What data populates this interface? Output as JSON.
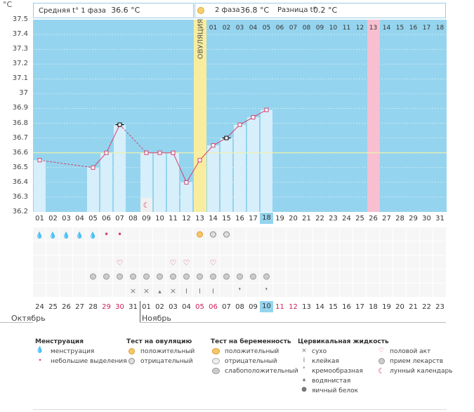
{
  "unit_label": "°C",
  "header": {
    "phase1_label": "Средняя t° 1 фаза",
    "phase1_value": "36.6 °C",
    "phase2_label": "2 фаза",
    "phase2_value": "36.8 °C",
    "diff_label": "Разница t°",
    "diff_value": "0.2 °C"
  },
  "ovulation_label": "ОВУЛЯЦИЯ",
  "cycle_day_labels": [
    "01",
    "02",
    "03",
    "04",
    "05",
    "06",
    "07",
    "08",
    "09",
    "10",
    "11",
    "12",
    "13",
    "14",
    "15",
    "16",
    "17",
    "18",
    "19",
    "20",
    "21",
    "22",
    "23",
    "24",
    "25",
    "26",
    "27",
    "28",
    "29",
    "30",
    "31"
  ],
  "top_day_labels": [
    "01",
    "02",
    "03",
    "04",
    "05",
    "06",
    "07",
    "08",
    "09",
    "10",
    "11",
    "12",
    "13",
    "14",
    "15",
    "16",
    "17",
    "18"
  ],
  "date_labels": [
    "24",
    "25",
    "26",
    "27",
    "28",
    "29",
    "30",
    "31",
    "01",
    "02",
    "03",
    "04",
    "05",
    "06",
    "07",
    "08",
    "09",
    "10",
    "11",
    "12",
    "13",
    "14",
    "15",
    "16",
    "17",
    "18",
    "19",
    "20",
    "21",
    "22",
    "23"
  ],
  "month_labels": {
    "prev": "Октябрь",
    "next": "Ноябрь"
  },
  "colors": {
    "chart_bg": "#95d4ee",
    "bar": "#d6effb",
    "line": "#d23f6f",
    "ovulation": "#f8ed9f",
    "today": "#f7bfcf",
    "avg": "#f2f2a8",
    "grid": "#ffffff"
  },
  "chart_data": {
    "type": "line",
    "title": "",
    "xlabel": "",
    "ylabel": "°C",
    "ylim": [
      36.2,
      37.5
    ],
    "yticks": [
      "36.2",
      "36.3",
      "36.4",
      "36.5",
      "36.6",
      "36.7",
      "36.8",
      "36.9",
      "37",
      "37.1",
      "37.2",
      "37.3",
      "37.4",
      "37.5"
    ],
    "x": [
      1,
      2,
      3,
      4,
      5,
      6,
      7,
      8,
      9,
      10,
      11,
      12,
      13,
      14,
      15,
      16,
      17,
      18,
      19,
      20,
      21,
      22,
      23,
      24,
      25,
      26,
      27,
      28,
      29,
      30,
      31
    ],
    "series": [
      {
        "values": [
          36.55,
          null,
          null,
          null,
          36.5,
          36.6,
          36.79,
          null,
          36.6,
          36.6,
          36.6,
          36.4,
          36.55,
          36.65,
          36.7,
          36.79,
          36.84,
          36.89,
          null,
          null,
          null,
          null,
          null,
          null,
          null,
          null,
          null,
          null,
          null,
          null,
          null
        ]
      }
    ],
    "average_line": 36.6,
    "ovulation_day": 13,
    "today_day": 26,
    "highlighted_cycle_day": 18,
    "highlighted_date_index": 18,
    "black_markers": [
      7,
      15
    ]
  },
  "legend": {
    "menstruation": {
      "title": "Менструация",
      "items": [
        "менструация",
        "небольшие выделения"
      ]
    },
    "ovulation_test": {
      "title": "Тест на овуляцию",
      "items": [
        "положительный",
        "отрицательный"
      ]
    },
    "pregnancy_test": {
      "title": "Тест на беременность",
      "items": [
        "положительный",
        "отрицательный",
        "слабоположительный"
      ]
    },
    "cervical": {
      "title": "Цервикальная жидкость",
      "items": [
        "сухо",
        "клейкая",
        "кремообразная",
        "водянистая",
        "яичный белок"
      ]
    },
    "other": {
      "items": [
        "половой акт",
        "прием лекарств",
        "лунный календарь"
      ]
    }
  }
}
